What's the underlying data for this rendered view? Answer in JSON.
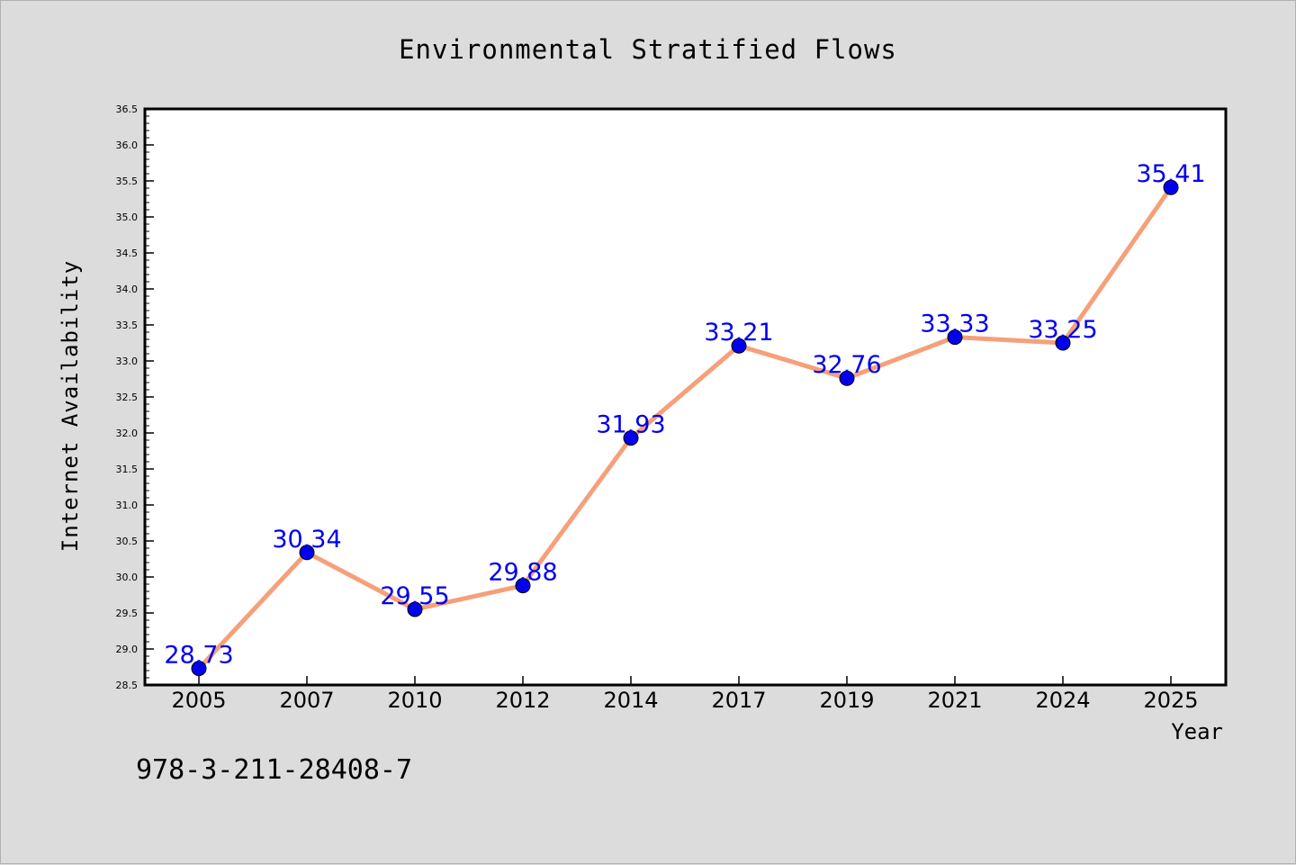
{
  "chart_data": {
    "type": "line",
    "title": "Environmental Stratified Flows",
    "xlabel": "Year",
    "ylabel": "Internet Availability",
    "categories": [
      "2005",
      "2007",
      "2010",
      "2012",
      "2014",
      "2017",
      "2019",
      "2021",
      "2024",
      "2025"
    ],
    "series": [
      {
        "values": [
          28.73,
          30.34,
          29.55,
          29.88,
          31.93,
          33.21,
          32.76,
          33.33,
          33.25,
          35.41
        ],
        "line_color": "#f5a07a",
        "marker_color": "#0000ee"
      }
    ],
    "data_labels": [
      "28.73",
      "30.34",
      "29.55",
      "29.88",
      "31.93",
      "33.21",
      "32.76",
      "33.33",
      "33.25",
      "35.41"
    ],
    "ylim": [
      28.5,
      36.5
    ],
    "yticks": [
      "28.5",
      "29.0",
      "29.5",
      "30.0",
      "30.5",
      "31.0",
      "31.5",
      "32.0",
      "32.5",
      "33.0",
      "33.5",
      "34.0",
      "34.5",
      "35.0",
      "35.5",
      "36.0",
      "36.5"
    ],
    "grid": false,
    "legend": "none"
  },
  "footer_code": "978-3-211-28408-7",
  "colors": {
    "background": "#dcdcdc",
    "plot_area": "#ffffff",
    "label_text": "#0000ee"
  }
}
